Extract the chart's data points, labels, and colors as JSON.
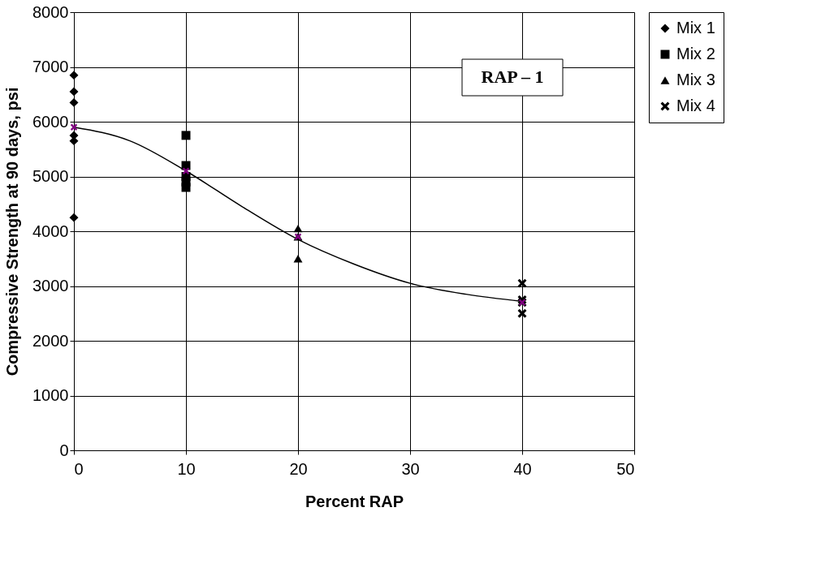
{
  "chart_data": {
    "type": "scatter",
    "xlabel": "Percent RAP",
    "ylabel": "Compressive Strength at 90 days, psi",
    "annotations": [
      "RAP – 1"
    ],
    "xlim": [
      0,
      50
    ],
    "xticks": [
      0,
      10,
      20,
      30,
      40,
      50
    ],
    "ylim": [
      0,
      8000
    ],
    "yticks": [
      0,
      1000,
      2000,
      3000,
      4000,
      5000,
      6000,
      7000,
      8000
    ],
    "grid": true,
    "legend": "right",
    "series": [
      {
        "name": "Mix 1",
        "color": "#000000",
        "marker": "diamond",
        "x": [
          0,
          0,
          0,
          0,
          0,
          0
        ],
        "values": [
          6850,
          6550,
          6350,
          5750,
          5650,
          4250
        ]
      },
      {
        "name": "Mix 2",
        "color": "#000000",
        "marker": "square",
        "x": [
          10,
          10,
          10,
          10,
          10
        ],
        "values": [
          5750,
          5200,
          5000,
          4900,
          4800
        ]
      },
      {
        "name": "Mix 3",
        "color": "#000000",
        "marker": "triangle",
        "x": [
          20,
          20,
          20
        ],
        "values": [
          4050,
          3900,
          3500
        ]
      },
      {
        "name": "Mix 4",
        "color": "#000000",
        "marker": "cross",
        "x": [
          40,
          40,
          40,
          40
        ],
        "values": [
          3050,
          2750,
          2700,
          2500
        ]
      },
      {
        "type": "scatter",
        "color": "#800080",
        "marker": "cross",
        "x": [
          0,
          10,
          20,
          40
        ],
        "values": [
          5900,
          5100,
          3900,
          2700
        ]
      },
      {
        "type": "line",
        "color": "#000000",
        "marker": "none",
        "x": [
          0,
          5,
          10,
          15,
          20,
          25,
          30,
          35,
          40
        ],
        "values": [
          5900,
          5650,
          5100,
          4450,
          3850,
          3400,
          3050,
          2850,
          2720
        ]
      }
    ]
  }
}
